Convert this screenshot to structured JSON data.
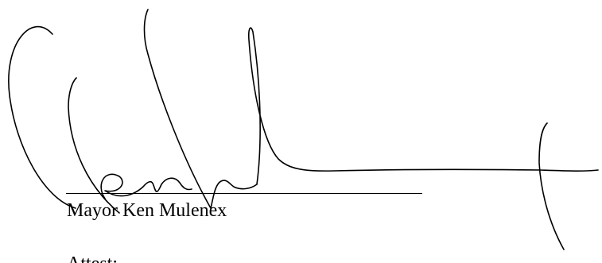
{
  "signature_block": {
    "signer_name": "Mayor Ken Mulenex",
    "next_label": "Attest:",
    "signature_icon": "handwritten-signature"
  },
  "colors": {
    "ink": "#000000",
    "background": "#ffffff"
  }
}
